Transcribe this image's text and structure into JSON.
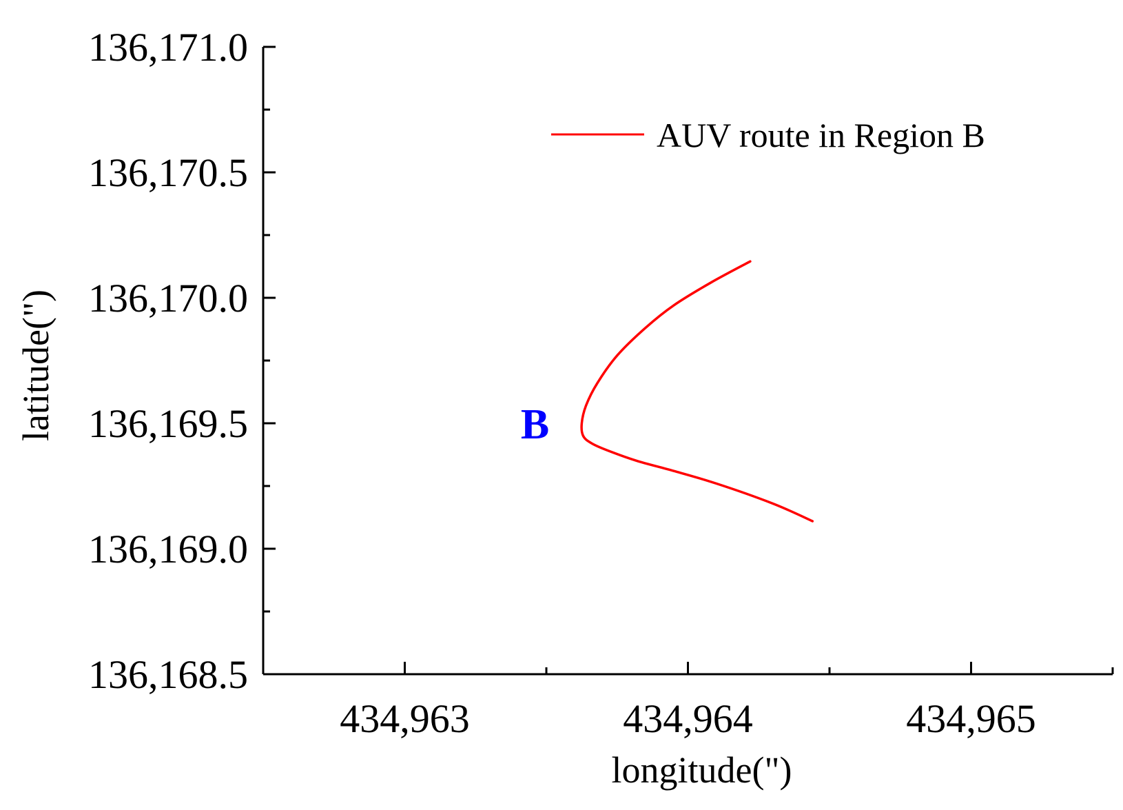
{
  "chart_data": {
    "type": "line",
    "title": "",
    "xlabel": "longitude(\")",
    "ylabel": "latitude(\")",
    "xlim": [
      434962.5,
      434965.5
    ],
    "ylim": [
      136168.5,
      136171.0
    ],
    "x_ticks": [
      434963,
      434964,
      434965
    ],
    "x_tick_labels": [
      "434,963",
      "434,964",
      "434,965"
    ],
    "y_ticks": [
      136168.5,
      136169.0,
      136169.5,
      136170.0,
      136170.5,
      136171.0
    ],
    "y_tick_labels": [
      "136,168.5",
      "136,169.0",
      "136,169.5",
      "136,170.0",
      "136,170.5",
      "136,171.0"
    ],
    "x_minor_step": 0.5,
    "y_minor_step": 0.25,
    "grid": false,
    "legend_position": "top-right",
    "series": [
      {
        "name": "AUV route in Region B",
        "color": "#ff0000",
        "x": [
          434964.22,
          434964.08,
          434963.95,
          434963.85,
          434963.75,
          434963.68,
          434963.64,
          434963.625,
          434963.63,
          434963.66,
          434963.72,
          434963.82,
          434963.95,
          434964.1,
          434964.3,
          434964.44
        ],
        "y": [
          136170.145,
          136170.06,
          136169.97,
          136169.88,
          136169.77,
          136169.66,
          136169.57,
          136169.5,
          136169.45,
          136169.42,
          136169.39,
          136169.35,
          136169.31,
          136169.26,
          136169.18,
          136169.11
        ]
      }
    ],
    "annotations": [
      {
        "text": "B",
        "x": 434963.46,
        "y": 136169.5,
        "color": "#0000ff"
      }
    ]
  }
}
